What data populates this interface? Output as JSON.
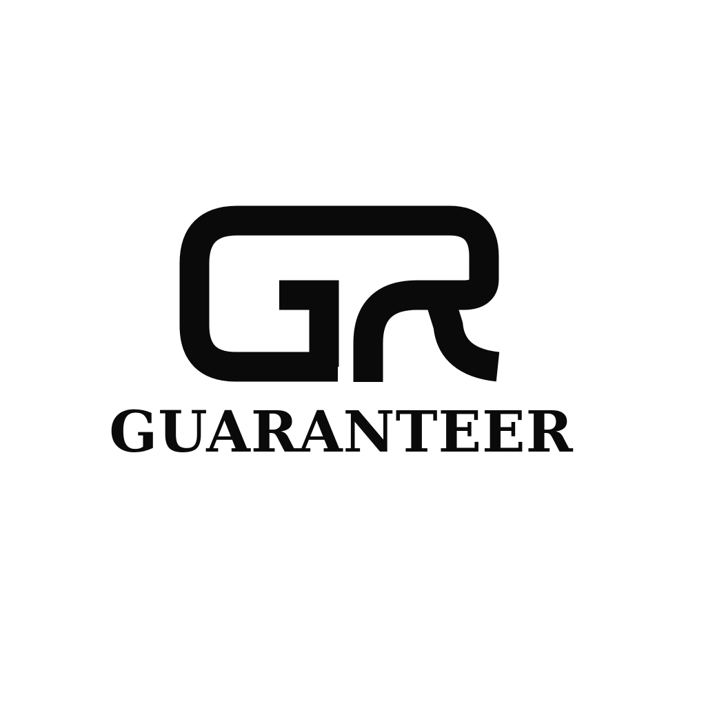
{
  "logo": {
    "monogram_text": "GR",
    "wordmark": "GUARANTEER",
    "ink_color": "#0a0a0a",
    "background_color": "#ffffff"
  }
}
